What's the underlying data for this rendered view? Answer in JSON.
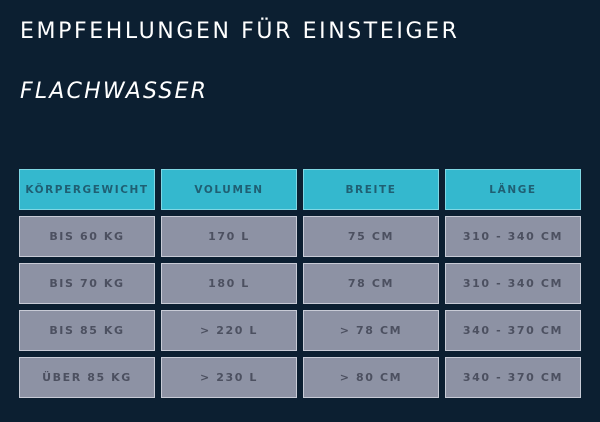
{
  "title": "EMPFEHLUNGEN FÜR EINSTEIGER",
  "subtitle": "FLACHWASSER",
  "table": {
    "headers": [
      "KÖRPERGEWICHT",
      "VOLUMEN",
      "BREITE",
      "LÄNGE"
    ],
    "rows": [
      [
        "BIS 60 KG",
        "170 L",
        "75 CM",
        "310 - 340 CM"
      ],
      [
        "BIS 70 KG",
        "180 L",
        "78 CM",
        "310 - 340 CM"
      ],
      [
        "BIS 85 KG",
        "> 220 L",
        "> 78 CM",
        "340 - 370 CM"
      ],
      [
        "ÜBER 85 KG",
        "> 230 L",
        "> 80 CM",
        "340 - 370 CM"
      ]
    ]
  },
  "colors": {
    "background": "#0c1f31",
    "header": "#34b8ce",
    "cell": "#8d92a4"
  }
}
